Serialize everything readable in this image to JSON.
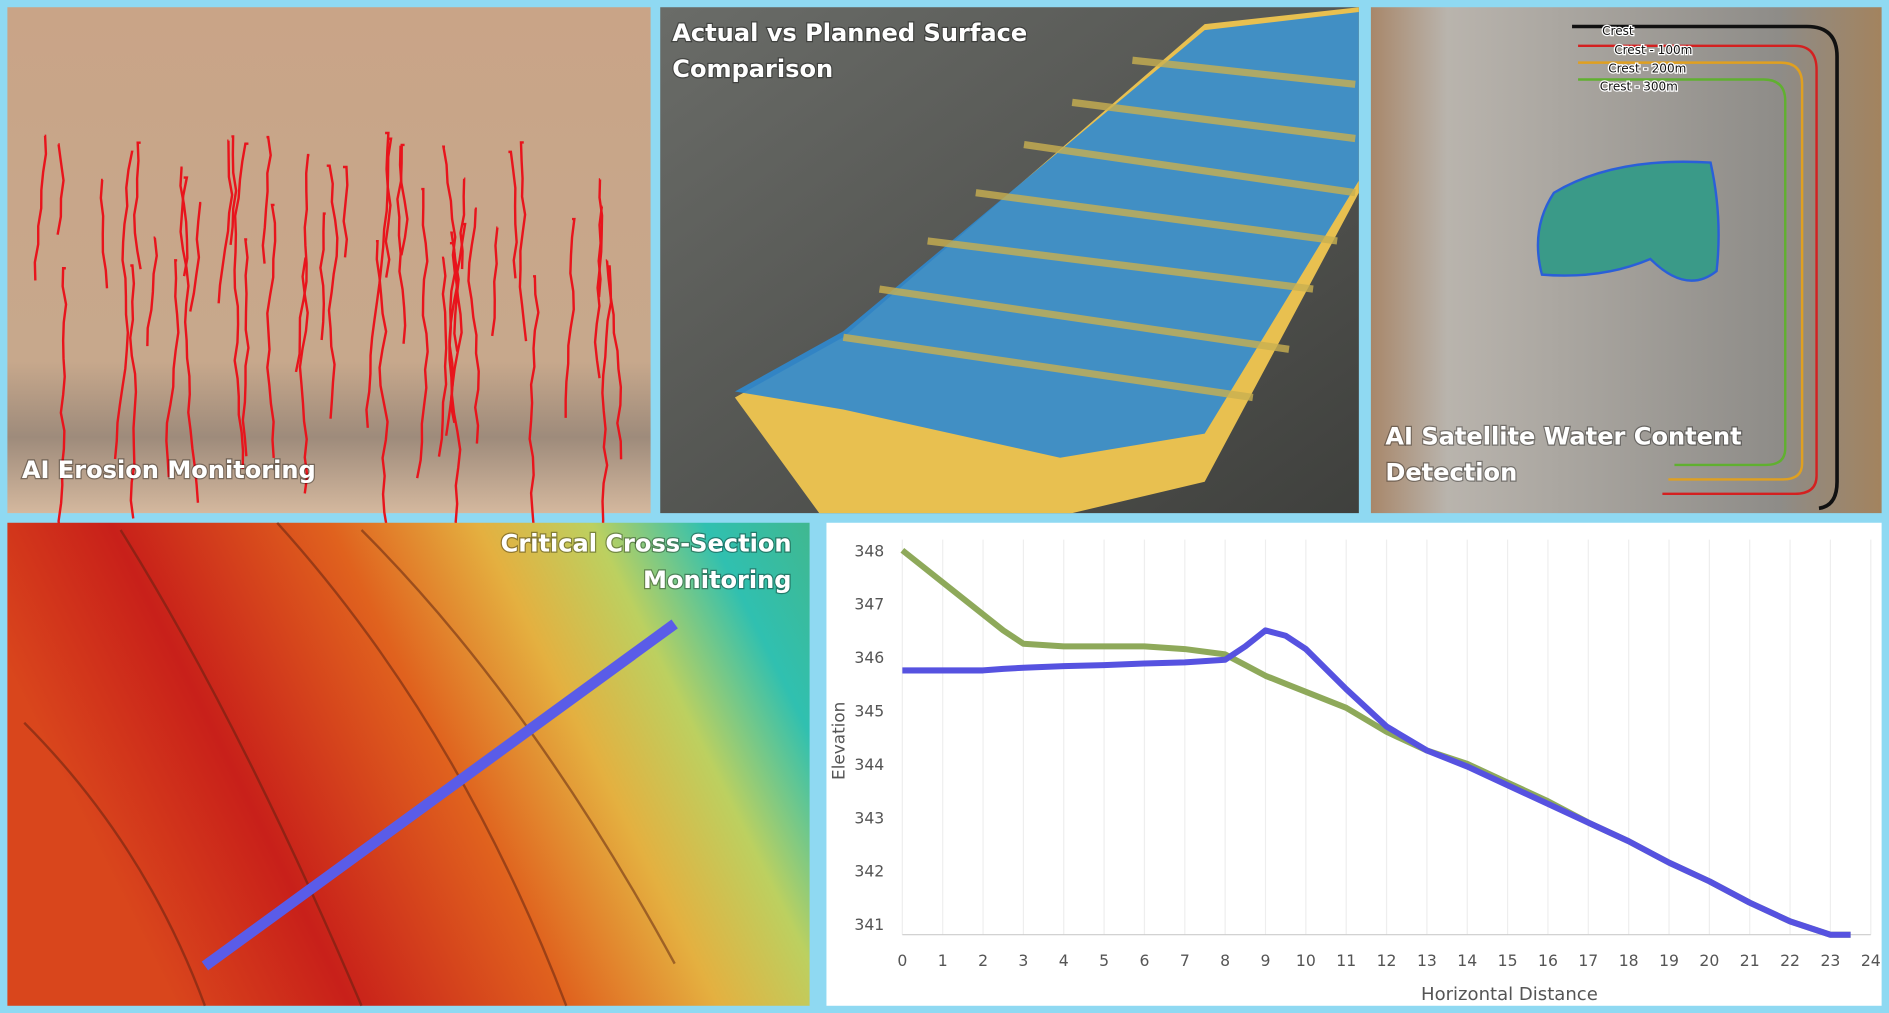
{
  "panels": [
    {
      "title": [
        "AI Erosion Monitoring"
      ]
    },
    {
      "title": [
        "Actual vs Planned Surface",
        "Comparison"
      ]
    },
    {
      "title": [
        "AI Satellite Water Content",
        "Detection"
      ],
      "legend": [
        "Crest",
        "Crest - 100m",
        "Crest - 200m",
        "Crest - 300m"
      ]
    },
    {
      "title": [
        "Critical Cross-Section",
        "Monitoring"
      ]
    }
  ],
  "chart_data": {
    "type": "line",
    "x_label": "Horizontal Distance",
    "y_label": "Elevation",
    "x": [
      0,
      0.5,
      1,
      1.5,
      2,
      2.5,
      3,
      4,
      5,
      6,
      7,
      8,
      8.5,
      9,
      9.5,
      10,
      11,
      12,
      13,
      14,
      15,
      16,
      17,
      18,
      19,
      20,
      21,
      22,
      23,
      23.5
    ],
    "series": [
      {
        "color": "#8ea95a",
        "values": [
          348,
          347.7,
          347.4,
          347.1,
          346.8,
          346.5,
          346.25,
          346.2,
          346.2,
          346.2,
          346.15,
          346.05,
          345.85,
          345.65,
          345.5,
          345.35,
          345.05,
          344.6,
          344.25,
          344.0,
          343.65,
          343.3,
          342.9,
          342.55,
          342.15,
          341.8,
          341.4,
          341.05,
          340.8,
          340.8
        ]
      },
      {
        "color": "#5652e0",
        "values": [
          345.75,
          345.75,
          345.75,
          345.75,
          345.75,
          345.78,
          345.8,
          345.83,
          345.85,
          345.88,
          345.9,
          345.95,
          346.2,
          346.5,
          346.4,
          346.15,
          345.4,
          344.7,
          344.25,
          343.95,
          343.6,
          343.25,
          342.9,
          342.55,
          342.15,
          341.8,
          341.4,
          341.05,
          340.8,
          340.8
        ]
      }
    ],
    "xlim": [
      0,
      24
    ],
    "ylim": [
      340.8,
      348.2
    ],
    "xticks": [
      0,
      1,
      2,
      3,
      4,
      5,
      6,
      7,
      8,
      9,
      10,
      11,
      12,
      13,
      14,
      15,
      16,
      17,
      18,
      19,
      20,
      21,
      22,
      23,
      24
    ],
    "yticks": [
      341,
      342,
      343,
      344,
      345,
      346,
      347,
      348
    ],
    "grid": true
  }
}
